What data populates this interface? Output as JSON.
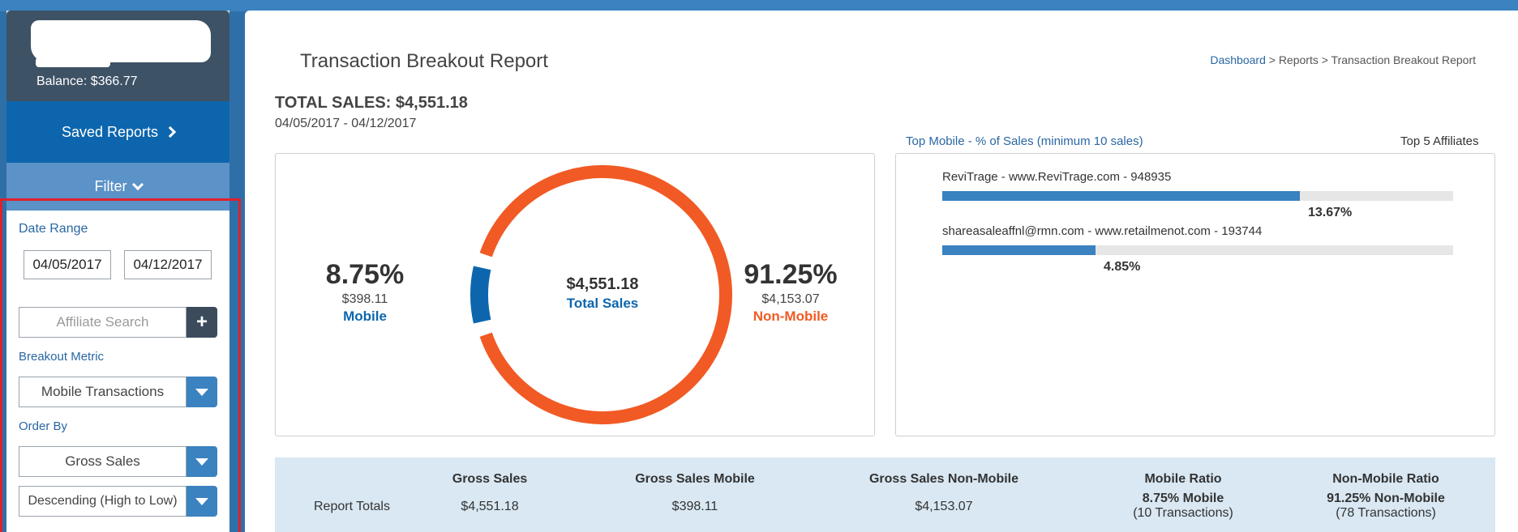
{
  "sidebar": {
    "balance": "Balance: $366.77",
    "saved_reports_label": "Saved Reports",
    "filter_label": "Filter",
    "date_range_label": "Date Range",
    "date_start": "04/05/2017",
    "date_end": "04/12/2017",
    "affiliate_search_placeholder": "Affiliate Search",
    "add_label": "+",
    "breakout_metric_label": "Breakout Metric",
    "breakout_metric_value": "Mobile Transactions",
    "order_by_label": "Order By",
    "order_by_value": "Gross Sales",
    "sort_value": "Descending (High to Low)"
  },
  "header": {
    "title": "Transaction Breakout Report",
    "breadcrumb_link": "Dashboard",
    "breadcrumb_rest": " > Reports > Transaction Breakout Report"
  },
  "summary": {
    "total_sales": "TOTAL SALES: $4,551.18",
    "date_range": "04/05/2017 - 04/12/2017"
  },
  "donut": {
    "mobile_pct": "8.75%",
    "mobile_amt": "$398.11",
    "mobile_label": "Mobile",
    "nonmobile_pct": "91.25%",
    "nonmobile_amt": "$4,153.07",
    "nonmobile_label": "Non-Mobile",
    "center_amt": "$4,551.18",
    "center_label": "Total Sales",
    "mobile_fraction": 0.0875,
    "colors": {
      "mobile": "#0d66ad",
      "nonmobile": "#f15a24"
    }
  },
  "affiliates": {
    "title": "Top Mobile - % of Sales (minimum 10 sales)",
    "top_label": "Top 5 Affiliates",
    "items": [
      {
        "name": "ReviTrage - www.ReviTrage.com - 948935",
        "value": "13.67%",
        "fraction": 0.7
      },
      {
        "name": "shareasaleaffnl@rmn.com - www.retailmenot.com - 193744",
        "value": "4.85%",
        "fraction": 0.3
      }
    ]
  },
  "totals": {
    "headers": [
      "Gross Sales",
      "Gross Sales Mobile",
      "Gross Sales Non-Mobile",
      "Mobile Ratio",
      "Non-Mobile Ratio"
    ],
    "row_label": "Report Totals",
    "gross_sales": "$4,551.18",
    "gross_mobile": "$398.11",
    "gross_nonmobile": "$4,153.07",
    "mobile_ratio": "8.75% Mobile",
    "mobile_tx": "(10 Transactions)",
    "nonmobile_ratio": "91.25% Non-Mobile",
    "nonmobile_tx": "(78 Transactions)"
  }
}
